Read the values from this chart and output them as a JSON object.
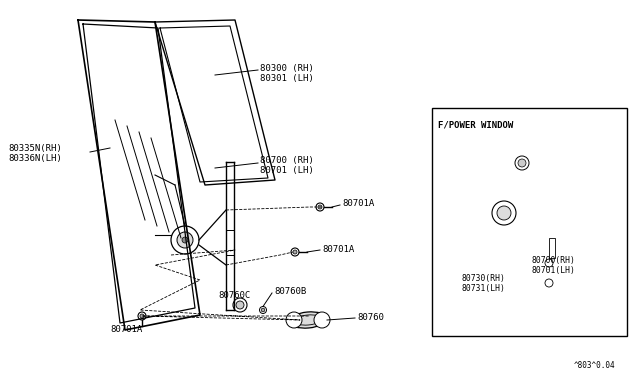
{
  "bg_color": "#ffffff",
  "line_color": "#000000",
  "text_color": "#000000",
  "fig_width": 6.4,
  "fig_height": 3.72,
  "dpi": 100,
  "title_code": "^803^0.04",
  "labels": {
    "80300_RH": "80300 (RH)",
    "80301_LH": "80301 (LH)",
    "80335N_RH": "80335N(RH)",
    "80336N_LH": "80336N(LH)",
    "80700_RH": "80700 (RH)",
    "80701_LH": "80701 (LH)",
    "80701A_1": "80701A",
    "80701A_2": "80701A",
    "80701A_3": "80701A",
    "80760C": "80760C",
    "80760B": "80760B",
    "80760": "80760",
    "inset_title": "F/POWER WINDOW",
    "inset_80700": "80700(RH)",
    "inset_80701": "80701(LH)",
    "inset_80730": "80730(RH)",
    "inset_80731": "80731(LH)"
  }
}
